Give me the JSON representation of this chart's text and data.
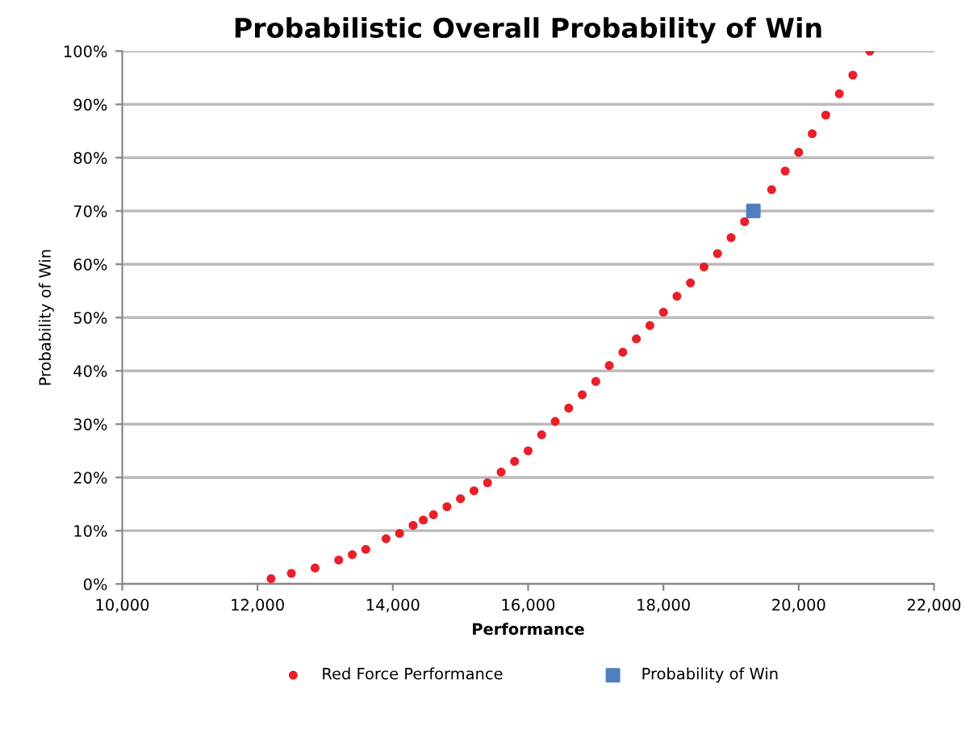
{
  "chart_data": {
    "type": "scatter",
    "title": "Probabilistic Overall Probability of Win",
    "xlabel": "Performance",
    "ylabel": "Probability of Win",
    "xlim": [
      10000,
      22000
    ],
    "xticks": [
      {
        "value": 10000,
        "label": "10,000"
      },
      {
        "value": 12000,
        "label": "12,000"
      },
      {
        "value": 14000,
        "label": "14,000"
      },
      {
        "value": 16000,
        "label": "16,000"
      },
      {
        "value": 18000,
        "label": "18,000"
      },
      {
        "value": 20000,
        "label": "20,000"
      },
      {
        "value": 22000,
        "label": "22,000"
      }
    ],
    "ylim": [
      0,
      100
    ],
    "yticks": [
      {
        "value": 0,
        "label": "0%"
      },
      {
        "value": 10,
        "label": "10%"
      },
      {
        "value": 20,
        "label": "20%"
      },
      {
        "value": 30,
        "label": "30%"
      },
      {
        "value": 40,
        "label": "40%"
      },
      {
        "value": 50,
        "label": "50%"
      },
      {
        "value": 60,
        "label": "60%"
      },
      {
        "value": 70,
        "label": "70%"
      },
      {
        "value": 80,
        "label": "80%"
      },
      {
        "value": 90,
        "label": "90%"
      },
      {
        "value": 100,
        "label": "100%"
      }
    ],
    "grid": "y",
    "legend": "bottom",
    "series": [
      {
        "name": "Red Force Performance",
        "color": "#e8202a",
        "marker": "circle",
        "x": [
          12200,
          12500,
          12850,
          13200,
          13400,
          13600,
          13900,
          14100,
          14300,
          14450,
          14600,
          14800,
          15000,
          15200,
          15400,
          15600,
          15800,
          16000,
          16200,
          16400,
          16600,
          16800,
          17000,
          17200,
          17400,
          17600,
          17800,
          18000,
          18200,
          18400,
          18600,
          18800,
          19000,
          19200,
          19400,
          19600,
          19800,
          20000,
          20200,
          20400,
          20600,
          20800,
          21050
        ],
        "values": [
          1,
          2,
          3,
          4.5,
          5.5,
          6.5,
          8.5,
          9.5,
          11,
          12,
          13,
          14.5,
          16,
          17.5,
          19,
          21,
          23,
          25,
          28,
          30.5,
          33,
          35.5,
          38,
          41,
          43.5,
          46,
          48.5,
          51,
          54,
          56.5,
          59.5,
          62,
          65,
          68,
          null,
          74,
          77.5,
          81,
          84.5,
          88,
          92,
          95.5,
          100
        ]
      },
      {
        "name": "Probability of Win",
        "color": "#4f7fbf",
        "marker": "square",
        "x": [
          19330
        ],
        "values": [
          70
        ]
      }
    ]
  }
}
